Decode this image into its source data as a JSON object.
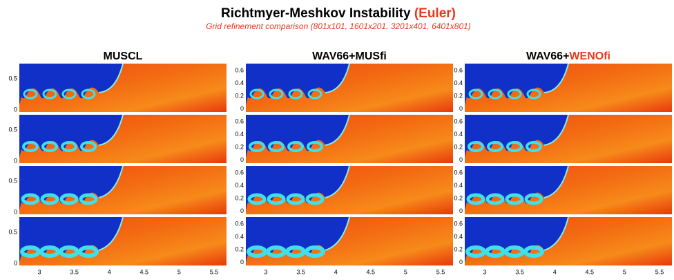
{
  "header": {
    "title": "Richtmyer-Meshkov Instability",
    "title_highlight": "(Euler)",
    "subtitle": "Grid refinement comparison (801x101, 1601x201, 3201x401, 6401x801)"
  },
  "columns": [
    {
      "title": "MUSCL",
      "title_highlight": null,
      "y_ticks": [
        "0.5",
        "0"
      ]
    },
    {
      "title": "WAV66+MUSfi",
      "title_highlight": null,
      "y_ticks": [
        "0.6",
        "0.4",
        "0.2",
        "0"
      ]
    },
    {
      "title": "WAV66+",
      "title_highlight": "WENOfi",
      "y_ticks": [
        "0.6",
        "0.4",
        "0.2",
        "0"
      ]
    }
  ],
  "x_ticks": [
    "3",
    "3.5",
    "4",
    "4.5",
    "5",
    "5.5"
  ]
}
